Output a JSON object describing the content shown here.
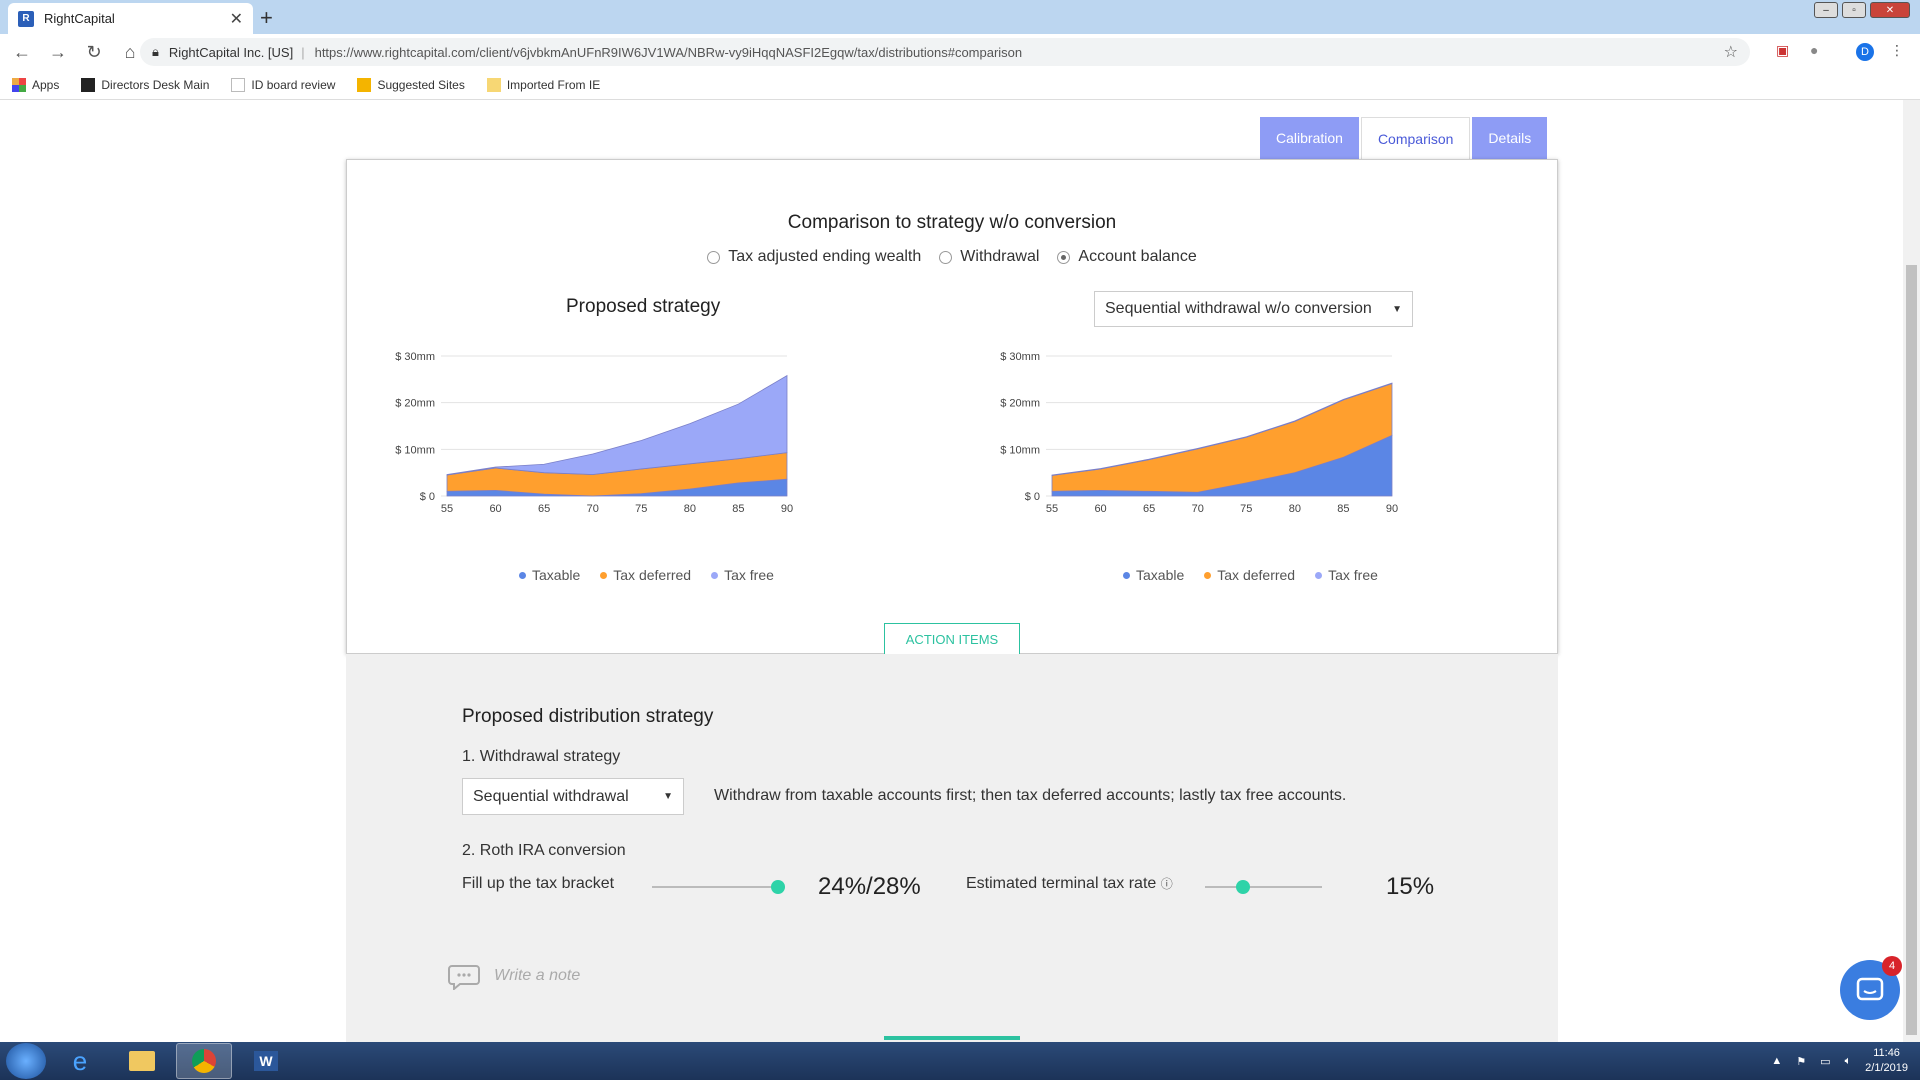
{
  "browser": {
    "tab_title": "RightCapital",
    "site_label": "RightCapital Inc. [US]",
    "url": "https://www.rightcapital.com/client/v6jvbkmAnUFnR9IW6JV1WA/NBRw-vy9iHqqNASFI2Egqw/tax/distributions#comparison",
    "profile_initial": "D",
    "bookmarks": [
      "Apps",
      "Directors Desk Main",
      "ID board review",
      "Suggested Sites",
      "Imported From IE"
    ]
  },
  "page_tabs": [
    "Calibration",
    "Comparison",
    "Details"
  ],
  "card": {
    "title": "Comparison to strategy w/o conversion",
    "radio_options": [
      "Tax adjusted ending wealth",
      "Withdrawal",
      "Account balance"
    ],
    "selected_radio": "Account balance",
    "left_title": "Proposed strategy",
    "right_select": "Sequential withdrawal w/o conversion",
    "action_button": "ACTION ITEMS"
  },
  "chart_data": [
    {
      "type": "area",
      "title": "Proposed strategy",
      "x": [
        55,
        60,
        65,
        70,
        75,
        80,
        85,
        90
      ],
      "ylim": [
        0,
        30
      ],
      "y_ticks": [
        "$ 0",
        "$ 10mm",
        "$ 20mm",
        "$ 30mm"
      ],
      "stacked": true,
      "series": [
        {
          "name": "Taxable",
          "color": "#5b86e5",
          "values": [
            1.0,
            1.2,
            0.4,
            0.0,
            0.5,
            1.5,
            2.8,
            3.6
          ]
        },
        {
          "name": "Tax deferred",
          "color": "#ff9f2e",
          "values": [
            3.5,
            4.8,
            4.6,
            4.6,
            5.3,
            5.4,
            5.2,
            5.7
          ]
        },
        {
          "name": "Tax free",
          "color": "#9ba8f8",
          "values": [
            0.1,
            0.2,
            1.8,
            4.4,
            6.1,
            8.6,
            11.7,
            16.5
          ]
        }
      ]
    },
    {
      "type": "area",
      "title": "Sequential withdrawal w/o conversion",
      "x": [
        55,
        60,
        65,
        70,
        75,
        80,
        85,
        90
      ],
      "ylim": [
        0,
        30
      ],
      "y_ticks": [
        "$ 0",
        "$ 10mm",
        "$ 20mm",
        "$ 30mm"
      ],
      "stacked": true,
      "series": [
        {
          "name": "Taxable",
          "color": "#5b86e5",
          "values": [
            1.0,
            1.2,
            1.0,
            0.8,
            2.8,
            5.0,
            8.3,
            13.0
          ]
        },
        {
          "name": "Tax deferred",
          "color": "#ff9f2e",
          "values": [
            3.4,
            4.6,
            6.8,
            9.3,
            9.8,
            11.0,
            12.3,
            11.1
          ]
        },
        {
          "name": "Tax free",
          "color": "#9ba8f8",
          "values": [
            0.1,
            0.1,
            0.1,
            0.1,
            0.1,
            0.1,
            0.1,
            0.1
          ]
        }
      ]
    }
  ],
  "distribution": {
    "title": "Proposed distribution strategy",
    "withdrawal_label": "1. Withdrawal strategy",
    "withdrawal_select": "Sequential withdrawal",
    "withdrawal_desc": "Withdraw from taxable accounts first; then tax deferred accounts; lastly tax free accounts.",
    "roth_label": "2. Roth IRA conversion",
    "fill_label": "Fill up the tax bracket",
    "fill_value": "24%/28%",
    "fill_level": 1.0,
    "terminal_label": "Estimated terminal tax rate",
    "terminal_value": "15%",
    "terminal_level": 0.3,
    "note_placeholder": "Write a note"
  },
  "chat_badge": "4",
  "taskbar": {
    "time": "11:46",
    "date": "2/1/2019"
  }
}
